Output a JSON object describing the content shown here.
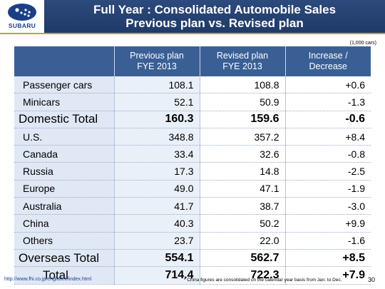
{
  "header": {
    "logo_text": "SUBARU",
    "title_line1": "Full Year : Consolidated Automobile Sales",
    "title_line2": "Previous plan vs. Revised plan"
  },
  "unit_note": "(1,000 cars)",
  "table": {
    "columns": [
      {
        "line1": "Previous plan",
        "line2": "FYE 2013"
      },
      {
        "line1": "Revised plan",
        "line2": "FYE 2013"
      },
      {
        "line1": "Increase /",
        "line2": "Decrease"
      }
    ],
    "rows": [
      {
        "label": "Passenger cars",
        "previous": "108.1",
        "revised": "108.8",
        "change": "+0.6"
      },
      {
        "label": "Minicars",
        "previous": "52.1",
        "revised": "50.9",
        "change": "-1.3"
      },
      {
        "label": "Domestic Total",
        "previous": "160.3",
        "revised": "159.6",
        "change": "-0.6"
      },
      {
        "label": "U.S.",
        "previous": "348.8",
        "revised": "357.2",
        "change": "+8.4"
      },
      {
        "label": "Canada",
        "previous": "33.4",
        "revised": "32.6",
        "change": "-0.8"
      },
      {
        "label": "Russia",
        "previous": "17.3",
        "revised": "14.8",
        "change": "-2.5"
      },
      {
        "label": "Europe",
        "previous": "49.0",
        "revised": "47.1",
        "change": "-1.9"
      },
      {
        "label": "Australia",
        "previous": "41.7",
        "revised": "38.7",
        "change": "-3.0"
      },
      {
        "label": "China",
        "previous": "40.3",
        "revised": "50.2",
        "change": "+9.9"
      },
      {
        "label": "Others",
        "previous": "23.7",
        "revised": "22.0",
        "change": "-1.6"
      },
      {
        "label": "Overseas Total",
        "previous": "554.1",
        "revised": "562.7",
        "change": "+8.5"
      },
      {
        "label": "Total",
        "previous": "714.4",
        "revised": "722.3",
        "change": "+7.9"
      }
    ]
  },
  "footer": {
    "url": "http://www.fhi.co.jp/english/ir/index.html",
    "note": "* China figures are consolidated on the calendar year basis from Jan. to Dec.",
    "page": "30"
  },
  "colors": {
    "header_blue": "#2d4a7c",
    "table_header_blue": "#3a5f95",
    "negative_red": "#e00000",
    "accent_gold": "#c9a227"
  }
}
